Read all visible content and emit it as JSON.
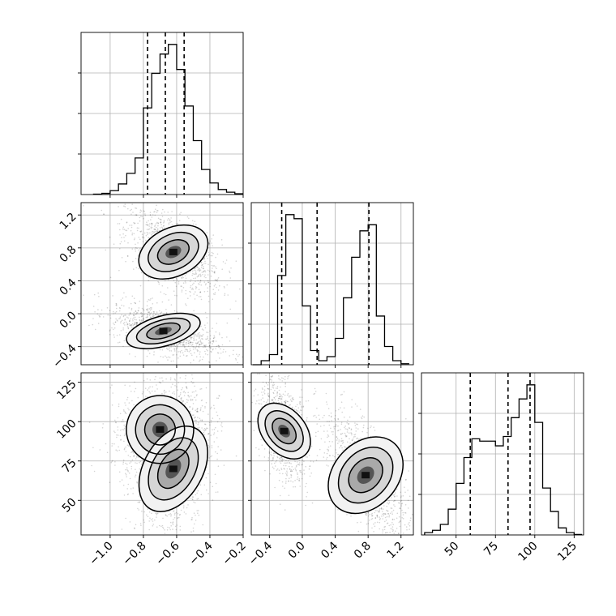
{
  "chart_data": [
    {
      "type": "histogram",
      "panel": "diag-0",
      "bin_edges": [
        -1.1,
        -1.05,
        -1.0,
        -0.95,
        -0.9,
        -0.85,
        -0.8,
        -0.75,
        -0.7,
        -0.65,
        -0.6,
        -0.55,
        -0.5,
        -0.45,
        -0.4,
        -0.35,
        -0.3,
        -0.25,
        -0.2
      ],
      "counts": [
        0.002,
        0.006,
        0.02,
        0.055,
        0.11,
        0.19,
        0.45,
        0.63,
        0.73,
        0.78,
        0.65,
        0.46,
        0.28,
        0.13,
        0.06,
        0.026,
        0.012,
        0.004
      ],
      "quantiles": [
        -0.775,
        -0.668,
        -0.555
      ],
      "xlim": [
        -1.175,
        -0.2
      ],
      "xticks": [],
      "grid": true
    },
    {
      "type": "histogram",
      "panel": "diag-1",
      "bin_edges": [
        -0.6,
        -0.5,
        -0.4,
        -0.3,
        -0.2,
        -0.1,
        0.0,
        0.1,
        0.2,
        0.3,
        0.4,
        0.5,
        0.6,
        0.7,
        0.8,
        0.9,
        1.0,
        1.1,
        1.2,
        1.3
      ],
      "counts": [
        0.0,
        0.02,
        0.05,
        0.44,
        0.74,
        0.72,
        0.29,
        0.07,
        0.02,
        0.04,
        0.13,
        0.33,
        0.53,
        0.66,
        0.69,
        0.24,
        0.09,
        0.02,
        0.005
      ],
      "quantiles": [
        -0.25,
        0.18,
        0.81
      ],
      "xlim": [
        -0.62,
        1.35
      ],
      "xticks": [],
      "grid": true
    },
    {
      "type": "histogram",
      "panel": "diag-2",
      "bin_edges": [
        30,
        35,
        40,
        45,
        50,
        55,
        60,
        65,
        70,
        75,
        80,
        85,
        90,
        95,
        100,
        105,
        110,
        115,
        120,
        125,
        130
      ],
      "counts": [
        0.01,
        0.02,
        0.045,
        0.11,
        0.22,
        0.33,
        0.41,
        0.4,
        0.4,
        0.38,
        0.42,
        0.5,
        0.58,
        0.64,
        0.48,
        0.2,
        0.1,
        0.03,
        0.01,
        0.002
      ],
      "quantiles": [
        59,
        83,
        97
      ],
      "xlim": [
        28,
        131
      ],
      "xticks": [
        "50",
        "75",
        "100",
        "125"
      ],
      "grid": true
    },
    {
      "type": "2d-density",
      "panel": "lower-1-0",
      "x_range": [
        -1.175,
        -0.2
      ],
      "y_range": [
        -0.62,
        1.35
      ],
      "modes": [
        {
          "x": -0.62,
          "y": 0.75
        },
        {
          "x": -0.68,
          "y": -0.21
        }
      ],
      "xticks": [],
      "yticks": [
        "−0.4",
        "0.0",
        "0.4",
        "0.8",
        "1.2"
      ],
      "grid": true
    },
    {
      "type": "2d-density",
      "panel": "lower-2-0",
      "x_range": [
        -1.175,
        -0.2
      ],
      "y_range": [
        28,
        131
      ],
      "modes": [
        {
          "x": -0.7,
          "y": 95
        },
        {
          "x": -0.62,
          "y": 70
        }
      ],
      "xticks": [
        "−1.0",
        "−0.8",
        "−0.6",
        "−0.4",
        "−0.2"
      ],
      "yticks": [
        "50",
        "75",
        "100",
        "125"
      ],
      "grid": true
    },
    {
      "type": "2d-density",
      "panel": "lower-2-1",
      "x_range": [
        -0.62,
        1.35
      ],
      "y_range": [
        28,
        131
      ],
      "modes": [
        {
          "x": -0.22,
          "y": 94
        },
        {
          "x": 0.77,
          "y": 66
        }
      ],
      "xticks": [
        "−0.4",
        "0.0",
        "0.4",
        "0.8",
        "1.2"
      ],
      "yticks": [],
      "grid": true
    }
  ]
}
